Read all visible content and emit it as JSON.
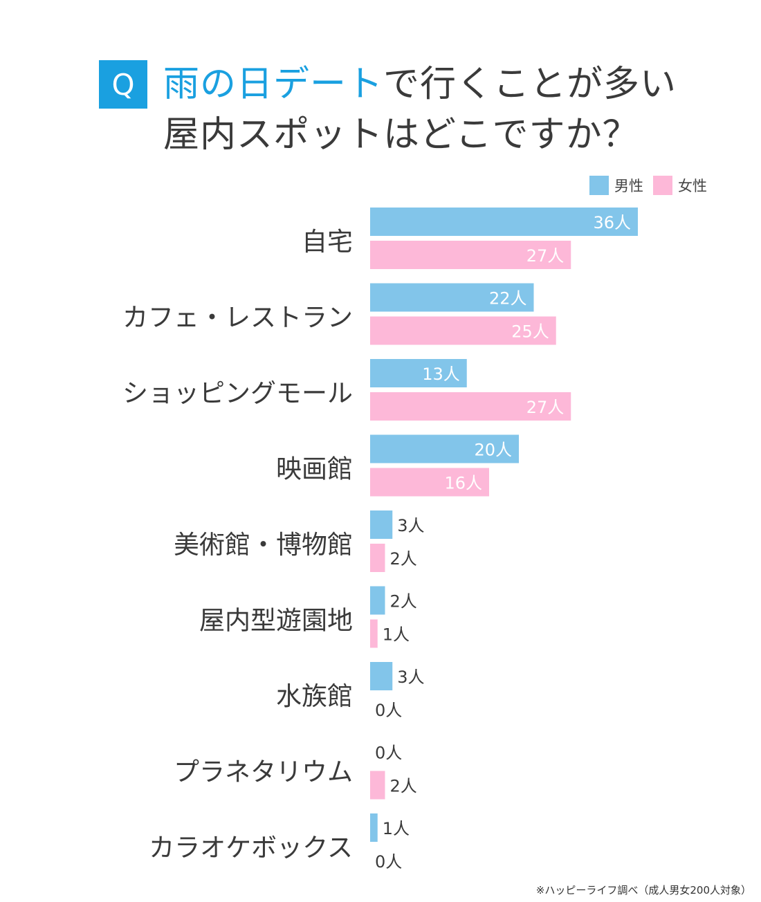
{
  "question": {
    "badge": "Q",
    "title_highlight": "雨の日デート",
    "title_rest": "で行くことが多い",
    "title_line2": "屋内スポットはどこですか？"
  },
  "colors": {
    "accent": "#1aa0e0",
    "male": "#82c5ea",
    "female": "#fdb8d8",
    "text": "#3a3a3a",
    "inside_label": "#ffffff"
  },
  "legend": {
    "male_label": "男性",
    "female_label": "女性"
  },
  "footnote": "※ハッピーライフ調べ（成人男女200人対象）",
  "chart_data": {
    "type": "bar",
    "orientation": "horizontal",
    "unit": "人",
    "categories": [
      "自宅",
      "カフェ・レストラン",
      "ショッピングモール",
      "映画館",
      "美術館・博物館",
      "屋内型遊園地",
      "水族館",
      "プラネタリウム",
      "カラオケボックス"
    ],
    "series": [
      {
        "name": "男性",
        "color": "#82c5ea",
        "values": [
          36,
          22,
          13,
          20,
          3,
          2,
          3,
          0,
          1
        ]
      },
      {
        "name": "女性",
        "color": "#fdb8d8",
        "values": [
          27,
          25,
          27,
          16,
          2,
          1,
          0,
          2,
          0
        ]
      }
    ],
    "xlim": [
      0,
      36
    ],
    "grid": false,
    "legend_position": "top-right"
  }
}
